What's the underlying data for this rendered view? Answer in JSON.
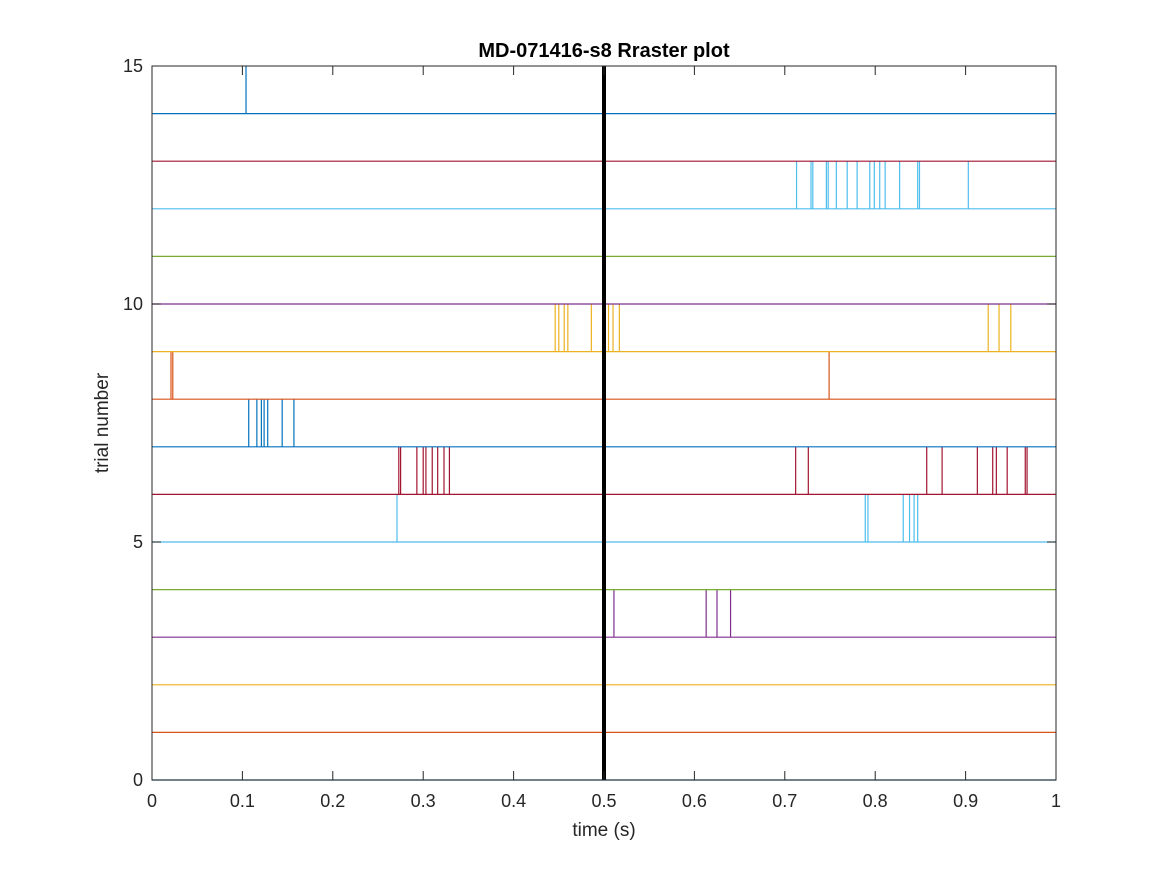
{
  "chart_data": {
    "type": "raster",
    "title": "MD-071416-s8 Rraster plot",
    "xlabel": "time (s)",
    "ylabel": "trial number",
    "xlim": [
      0,
      1
    ],
    "ylim": [
      0,
      15
    ],
    "x_ticks": [
      "0",
      "0.1",
      "0.2",
      "0.3",
      "0.4",
      "0.5",
      "0.6",
      "0.7",
      "0.8",
      "0.9",
      "1"
    ],
    "y_ticks": [
      "0",
      "5",
      "10",
      "15"
    ],
    "grid": false,
    "event_line": {
      "x": 0.5,
      "color": "#000000"
    },
    "trials": [
      {
        "trial": 0,
        "color": "#0072BD",
        "spikes": []
      },
      {
        "trial": 1,
        "color": "#D95319",
        "spikes": []
      },
      {
        "trial": 2,
        "color": "#EDB120",
        "spikes": []
      },
      {
        "trial": 3,
        "color": "#7E2F8E",
        "spikes": [
          0.511,
          0.613,
          0.625,
          0.64
        ]
      },
      {
        "trial": 4,
        "color": "#77AC30",
        "spikes": []
      },
      {
        "trial": 5,
        "color": "#4DBEEE",
        "spikes": [
          0.271,
          0.789,
          0.792,
          0.831,
          0.838,
          0.843,
          0.847
        ]
      },
      {
        "trial": 6,
        "color": "#A2142F",
        "spikes": [
          0.273,
          0.275,
          0.293,
          0.3,
          0.303,
          0.31,
          0.316,
          0.323,
          0.329,
          0.712,
          0.726,
          0.857,
          0.874,
          0.913,
          0.93,
          0.934,
          0.946,
          0.966,
          0.968
        ]
      },
      {
        "trial": 7,
        "color": "#0072BD",
        "spikes": [
          0.107,
          0.116,
          0.121,
          0.124,
          0.128,
          0.144,
          0.157
        ]
      },
      {
        "trial": 8,
        "color": "#D95319",
        "spikes": [
          0.021,
          0.023,
          0.749
        ]
      },
      {
        "trial": 9,
        "color": "#EDB120",
        "spikes": [
          0.446,
          0.45,
          0.456,
          0.46,
          0.486,
          0.505,
          0.51,
          0.517,
          0.925,
          0.937,
          0.95
        ]
      },
      {
        "trial": 10,
        "color": "#7E2F8E",
        "spikes": []
      },
      {
        "trial": 11,
        "color": "#77AC30",
        "spikes": []
      },
      {
        "trial": 12,
        "color": "#4DBEEE",
        "spikes": [
          0.713,
          0.729,
          0.731,
          0.746,
          0.748,
          0.757,
          0.769,
          0.78,
          0.794,
          0.799,
          0.805,
          0.811,
          0.827,
          0.847,
          0.849,
          0.903
        ]
      },
      {
        "trial": 13,
        "color": "#A2142F",
        "spikes": []
      },
      {
        "trial": 14,
        "color": "#0072BD",
        "spikes": [
          0.104
        ]
      }
    ]
  }
}
